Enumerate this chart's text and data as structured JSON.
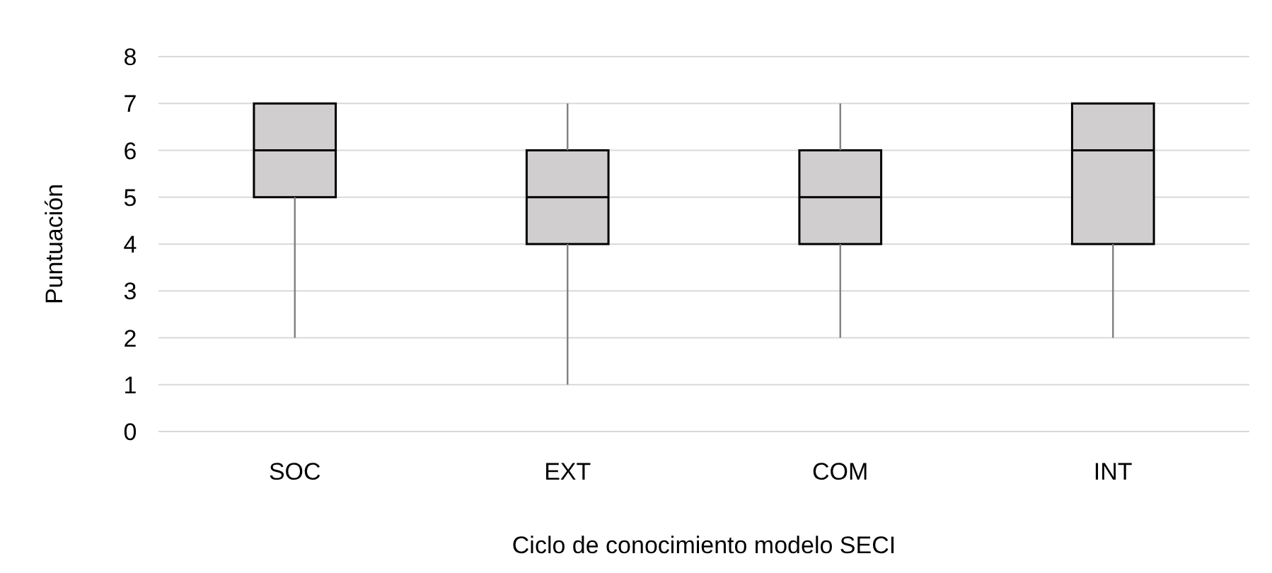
{
  "chart_data": {
    "type": "box",
    "xlabel": "Ciclo de conocimiento modelo SECI",
    "ylabel": "Puntuación",
    "categories": [
      "SOC",
      "EXT",
      "COM",
      "INT"
    ],
    "boxes": [
      {
        "low": 2,
        "q1": 5,
        "median": 6,
        "q3": 7,
        "high": 7
      },
      {
        "low": 1,
        "q1": 4,
        "median": 5,
        "q3": 6,
        "high": 7
      },
      {
        "low": 2,
        "q1": 4,
        "median": 5,
        "q3": 6,
        "high": 7
      },
      {
        "low": 2,
        "q1": 4,
        "median": 6,
        "q3": 7,
        "high": 7
      }
    ],
    "color": "#d0cece",
    "ylim": [
      0,
      8
    ],
    "yticks": [
      0,
      1,
      2,
      3,
      4,
      5,
      6,
      7,
      8
    ],
    "grid": "y"
  }
}
